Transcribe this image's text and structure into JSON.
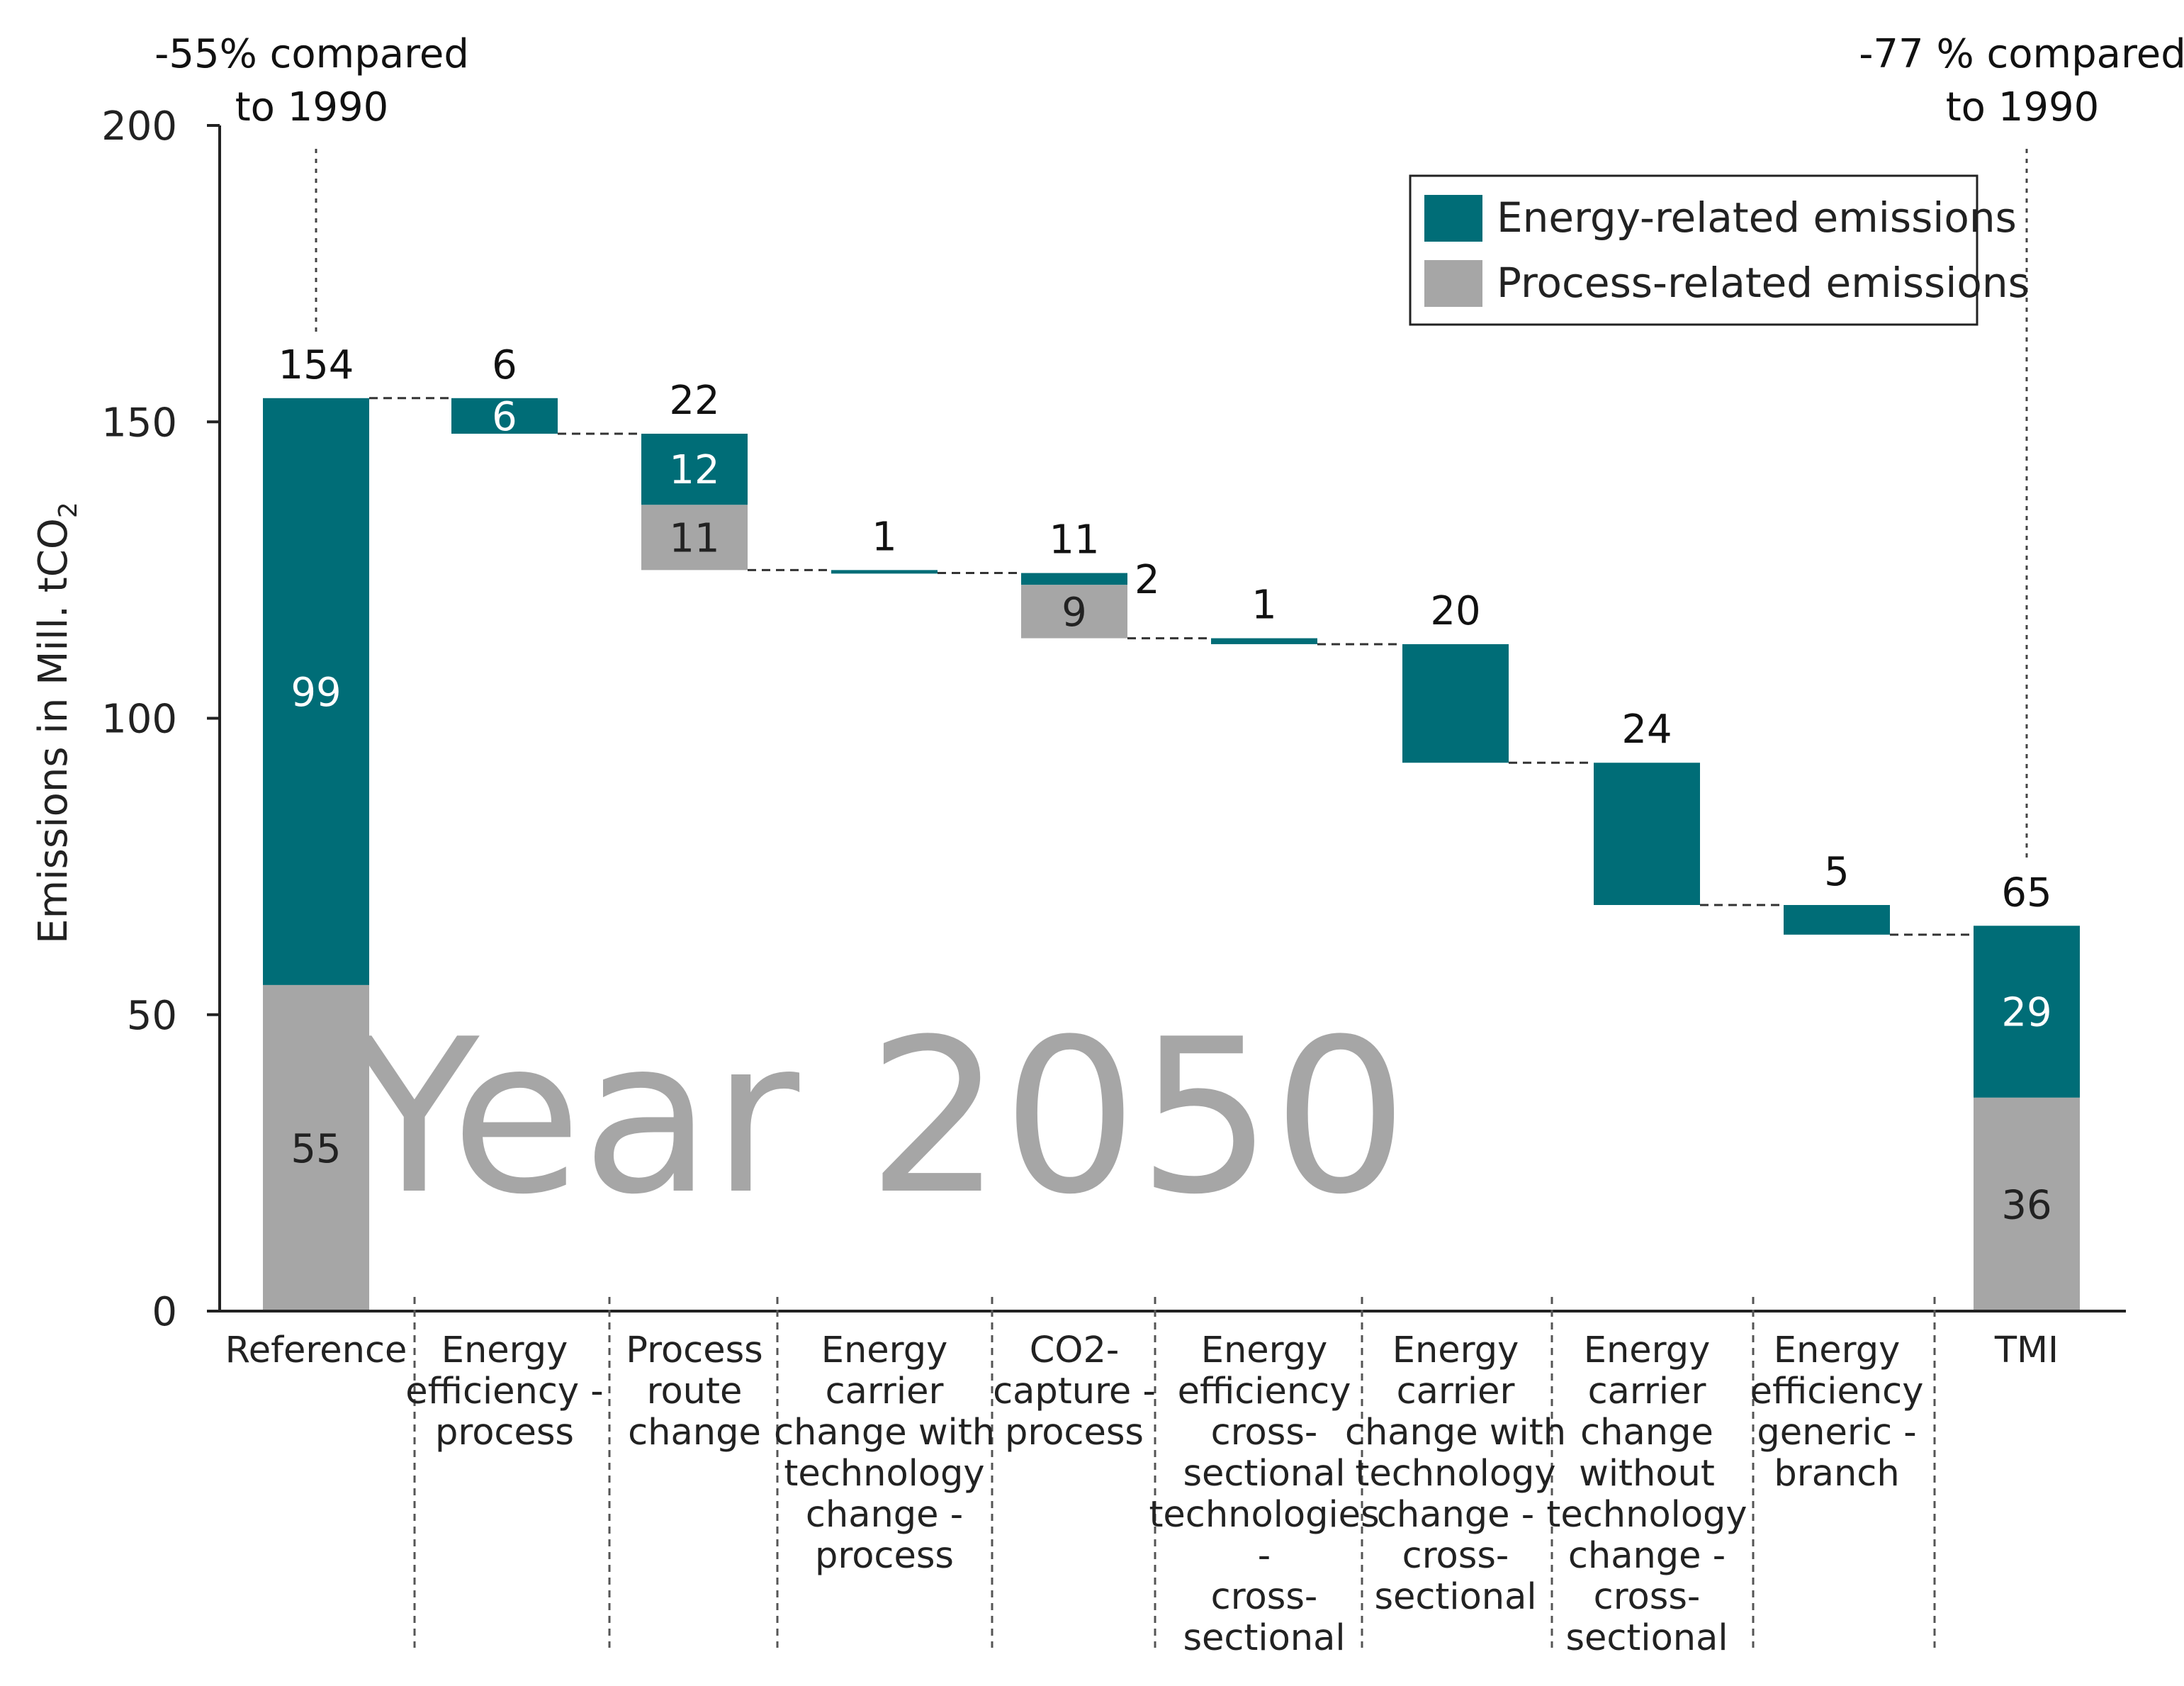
{
  "chart_data": {
    "type": "waterfall",
    "ylabel": "Emissions in Mill. tCO",
    "ylabel_subscript": "2",
    "ylim": [
      0,
      200
    ],
    "yticks": [
      0,
      50,
      100,
      150,
      200
    ],
    "watermark": "Year 2050",
    "colors": {
      "energy": "#006d77",
      "process": "#a6a6a6",
      "axis": "#222222",
      "watermark": "#a6a6a6"
    },
    "legend": [
      {
        "key": "energy",
        "label": "Energy-related emissions"
      },
      {
        "key": "process",
        "label": "Process-related emissions"
      }
    ],
    "annotations": [
      {
        "cat": 0,
        "lines": [
          "-55% compared",
          "to 1990"
        ]
      },
      {
        "cat": 9,
        "lines": [
          "-77 % compared",
          "to 1990"
        ]
      }
    ],
    "categories": [
      {
        "lines": [
          "Reference"
        ],
        "kind": "total",
        "energy": 99,
        "process": 55,
        "total_label": "154",
        "energy_label": "99",
        "process_label": "55"
      },
      {
        "lines": [
          "Energy",
          "efficiency -",
          "process"
        ],
        "kind": "step",
        "energy": 6,
        "process": 0,
        "total_label": "6",
        "energy_label": "6"
      },
      {
        "lines": [
          "Process",
          "route",
          "change"
        ],
        "kind": "step",
        "energy": 12,
        "process": 11,
        "total_label": "22",
        "energy_label": "12",
        "process_label": "11"
      },
      {
        "lines": [
          "Energy",
          "carrier",
          "change with",
          "technology",
          "change -",
          "process"
        ],
        "kind": "step",
        "energy": 0.5,
        "process": 0,
        "total_label": "1"
      },
      {
        "lines": [
          "CO2-",
          "capture -",
          "process"
        ],
        "kind": "step",
        "energy": 2,
        "process": 9,
        "total_label": "11",
        "side_label": "2",
        "process_label": "9"
      },
      {
        "lines": [
          "Energy",
          "efficiency",
          "cross-",
          "sectional",
          "technologies",
          "-",
          "cross-",
          "sectional"
        ],
        "kind": "step",
        "energy": 1,
        "process": 0,
        "total_label": "1"
      },
      {
        "lines": [
          "Energy",
          "carrier",
          "change with",
          "technology",
          "change -",
          "cross-",
          "sectional"
        ],
        "kind": "step",
        "energy": 20,
        "process": 0,
        "total_label": "20"
      },
      {
        "lines": [
          "Energy",
          "carrier",
          "change",
          "without",
          "technology",
          "change -",
          "cross-",
          "sectional"
        ],
        "kind": "step",
        "energy": 24,
        "process": 0,
        "total_label": "24"
      },
      {
        "lines": [
          "Energy",
          "efficiency",
          "generic -",
          "branch"
        ],
        "kind": "step",
        "energy": 5,
        "process": 0,
        "total_label": "5"
      },
      {
        "lines": [
          "TMI"
        ],
        "kind": "total",
        "energy": 29,
        "process": 36,
        "total_label": "65",
        "energy_label": "29",
        "process_label": "36"
      }
    ]
  }
}
